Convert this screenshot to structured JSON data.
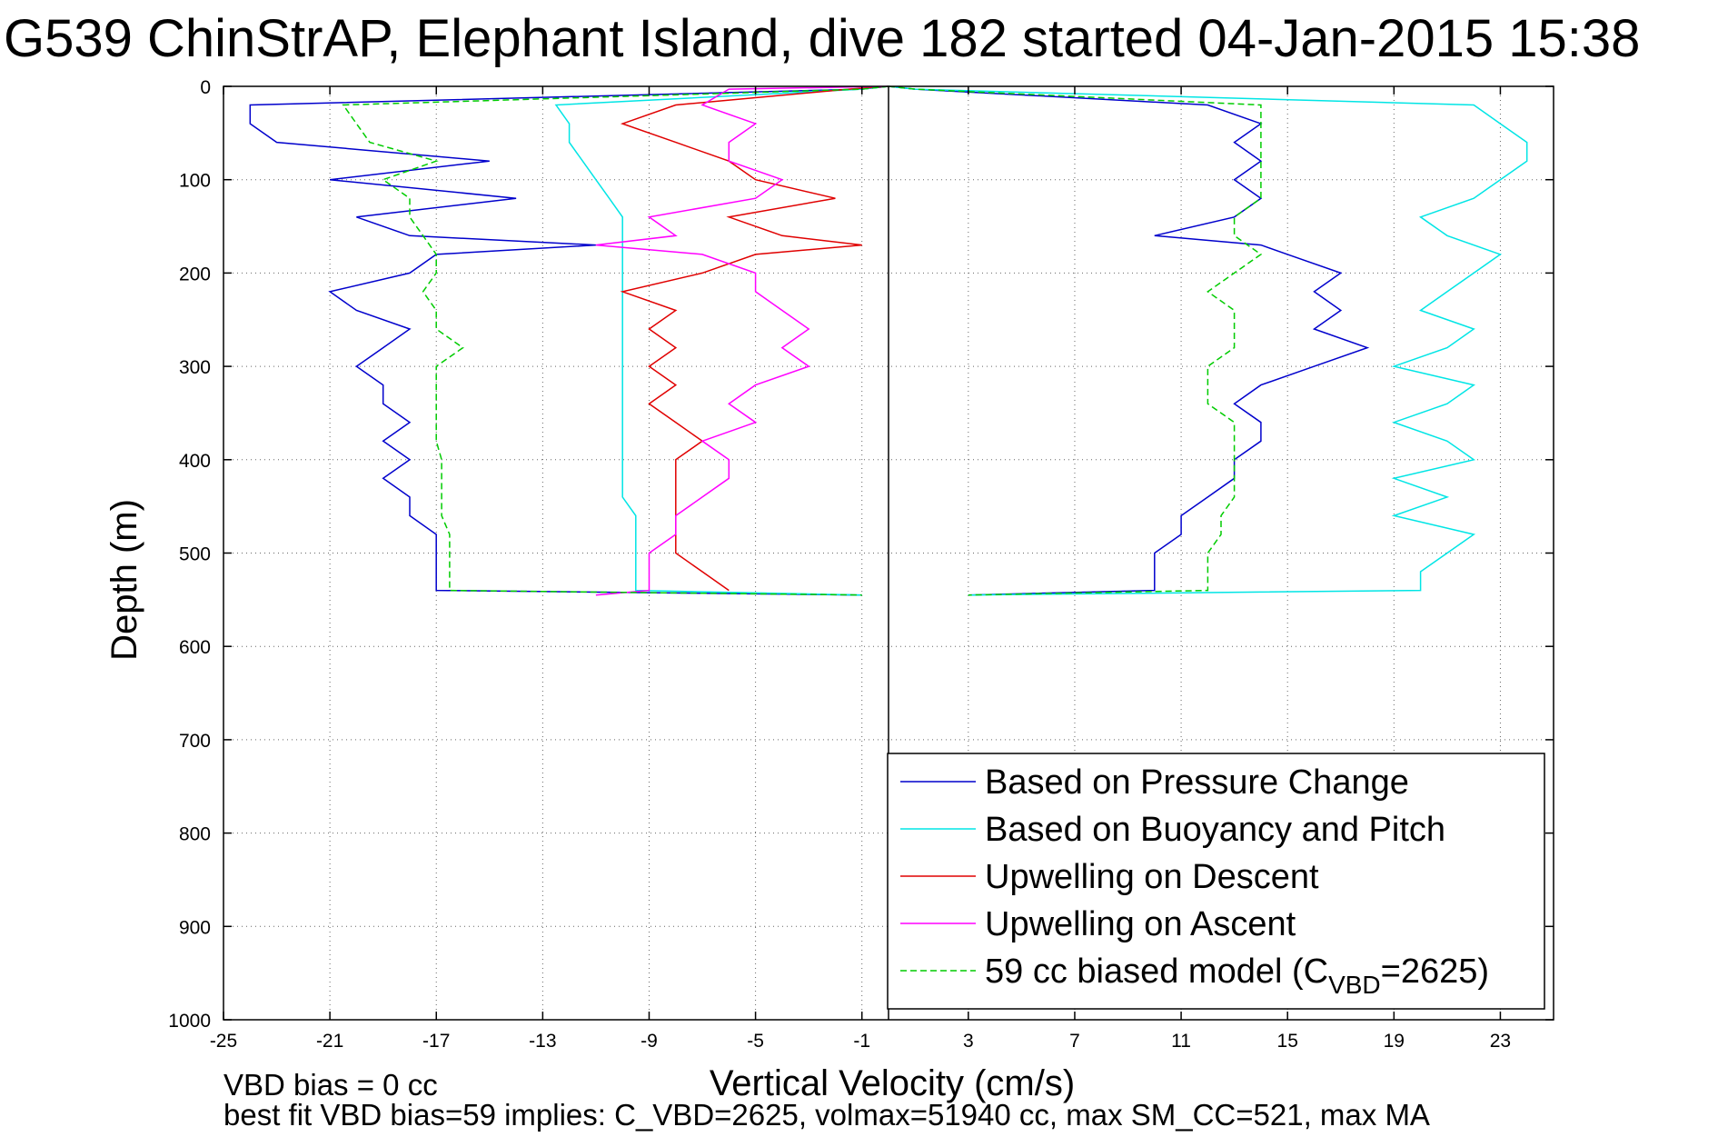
{
  "chart_data": {
    "type": "line",
    "title": "G539 ChinStrAP, Elephant Island, dive 182 started 04-Jan-2015 15:38",
    "xlabel": "Vertical Velocity (cm/s)",
    "ylabel": "Depth (m)",
    "xlim": [
      -25,
      25
    ],
    "ylim": [
      0,
      1000
    ],
    "y_reversed": true,
    "grid": true,
    "x_ticks": [
      -25,
      -21,
      -17,
      -13,
      -9,
      -5,
      -1,
      3,
      7,
      11,
      15,
      19,
      23
    ],
    "y_ticks": [
      0,
      100,
      200,
      300,
      400,
      500,
      600,
      700,
      800,
      900,
      1000
    ],
    "zero_line_x": 0,
    "legend_position": "bottom-right",
    "series": [
      {
        "name": "Based on Pressure Change",
        "color": "#0000cc",
        "style": "solid",
        "depth": [
          3,
          20,
          40,
          60,
          80,
          100,
          120,
          140,
          160,
          170,
          180,
          200,
          220,
          240,
          260,
          280,
          300,
          320,
          340,
          360,
          380,
          400,
          420,
          440,
          460,
          480,
          500,
          520,
          540,
          545
        ],
        "descent": [
          -1,
          -24,
          -24,
          -23,
          -15,
          -21,
          -14,
          -20,
          -18,
          -11,
          -17,
          -18,
          -21,
          -20,
          -18,
          -19,
          -20,
          -19,
          -19,
          -18,
          -19,
          -18,
          -19,
          -18,
          -18,
          -17,
          -17,
          -17,
          -17,
          -1
        ],
        "ascent": [
          1,
          12,
          14,
          13,
          14,
          13,
          14,
          13,
          10,
          14,
          15,
          17,
          16,
          17,
          16,
          18,
          16,
          14,
          13,
          14,
          14,
          13,
          13,
          12,
          11,
          11,
          10,
          10,
          10,
          3
        ]
      },
      {
        "name": "Based on Buoyancy and Pitch",
        "color": "#00e5e5",
        "style": "solid",
        "depth": [
          3,
          20,
          40,
          60,
          80,
          100,
          120,
          140,
          160,
          180,
          200,
          220,
          240,
          260,
          280,
          300,
          320,
          340,
          360,
          380,
          400,
          420,
          440,
          460,
          480,
          500,
          520,
          540,
          545
        ],
        "descent": [
          -1,
          -12.5,
          -12,
          -12,
          -11.5,
          -11,
          -10.5,
          -10,
          -10,
          -10,
          -10,
          -10,
          -10,
          -10,
          -10,
          -10,
          -10,
          -10,
          -10,
          -10,
          -10,
          -10,
          -10,
          -9.5,
          -9.5,
          -9.5,
          -9.5,
          -9.5,
          -1
        ],
        "ascent": [
          1,
          22,
          23,
          24,
          24,
          23,
          22,
          20,
          21,
          23,
          22,
          21,
          20,
          22,
          21,
          19,
          22,
          21,
          19,
          21,
          22,
          19,
          21,
          19,
          22,
          21,
          20,
          20,
          3
        ]
      },
      {
        "name": "Upwelling on Descent",
        "color": "#e00000",
        "style": "solid",
        "depth": [
          3,
          20,
          40,
          60,
          80,
          100,
          120,
          140,
          160,
          170,
          180,
          200,
          220,
          240,
          260,
          280,
          300,
          320,
          340,
          360,
          380,
          400,
          420,
          440,
          460,
          480,
          500,
          520,
          540
        ],
        "descent": [
          -1.5,
          -8,
          -10,
          -8,
          -6,
          -5,
          -2,
          -6,
          -4,
          -1,
          -5,
          -7,
          -10,
          -8,
          -9,
          -8,
          -9,
          -8,
          -9,
          -8,
          -7,
          -8,
          -8,
          -8,
          -8,
          -8,
          -8,
          -7,
          -6
        ]
      },
      {
        "name": "Upwelling on Ascent",
        "color": "#ff00ff",
        "style": "solid",
        "depth": [
          3,
          20,
          40,
          60,
          80,
          100,
          120,
          140,
          160,
          170,
          180,
          200,
          220,
          240,
          260,
          280,
          300,
          320,
          340,
          360,
          380,
          400,
          420,
          440,
          460,
          480,
          500,
          520,
          540,
          545
        ],
        "ascent": [
          -6,
          -7,
          -5,
          -6,
          -6,
          -4,
          -5,
          -9,
          -8,
          -11,
          -7,
          -5,
          -5,
          -4,
          -3,
          -4,
          -3,
          -5,
          -6,
          -5,
          -7,
          -6,
          -6,
          -7,
          -8,
          -8,
          -9,
          -9,
          -9,
          -11
        ]
      },
      {
        "name": "59 cc biased model (C_VBD=2625)",
        "color": "#00cc00",
        "style": "dashed",
        "depth": [
          3,
          20,
          40,
          60,
          80,
          100,
          120,
          140,
          160,
          180,
          200,
          220,
          240,
          260,
          280,
          300,
          320,
          340,
          360,
          380,
          400,
          420,
          440,
          460,
          480,
          500,
          520,
          540,
          545
        ],
        "descent": [
          -1,
          -20.5,
          -20,
          -19.5,
          -17,
          -19,
          -18,
          -18,
          -17.5,
          -17,
          -17,
          -17.5,
          -17,
          -17,
          -16,
          -17,
          -17,
          -17,
          -17,
          -17,
          -16.8,
          -16.8,
          -16.8,
          -16.8,
          -16.5,
          -16.5,
          -16.5,
          -16.5,
          -1
        ],
        "ascent": [
          1,
          14,
          14,
          14,
          14,
          14,
          14,
          13,
          13,
          14,
          13,
          12,
          13,
          13,
          13,
          12,
          12,
          12,
          13,
          13,
          13,
          13,
          13,
          12.5,
          12.5,
          12,
          12,
          12,
          3
        ]
      }
    ],
    "legend": [
      {
        "label": "Based on Pressure Change",
        "color": "#0000cc",
        "style": "solid"
      },
      {
        "label": "Based on Buoyancy and Pitch",
        "color": "#00e5e5",
        "style": "solid"
      },
      {
        "label": "Upwelling on Descent",
        "color": "#e00000",
        "style": "solid"
      },
      {
        "label": "Upwelling on Ascent",
        "color": "#ff00ff",
        "style": "solid"
      },
      {
        "label": "59 cc biased model (C",
        "sub": "VBD",
        "suffix": "=2625)",
        "color": "#00cc00",
        "style": "dashed"
      }
    ]
  },
  "footer": {
    "line1": "VBD bias = 0 cc",
    "line2": "best fit VBD bias=59 implies: C_VBD=2625, volmax=51940 cc, max SM_CC=521, max MA"
  }
}
